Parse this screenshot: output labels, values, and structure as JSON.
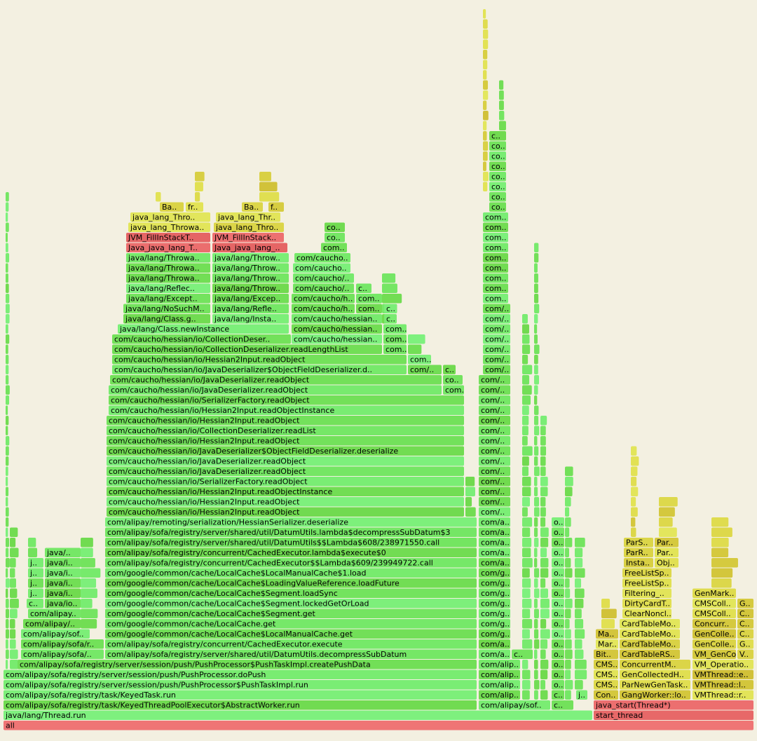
{
  "rows": [
    [
      "all"
    ],
    [
      "java/lang/Thread.run",
      "start_thread"
    ],
    [
      "com/alipay/sofa/registry/task/KeyedThreadPoolExecutor$AbstractWorker.run",
      "com/alipay/sof..",
      "c..",
      "java_start(Thread*)"
    ],
    [
      "com/alipay/sofa/registry/task/KeyedTask.run",
      "com/alip..",
      "c..",
      "j..",
      "Con..",
      "GangWorker::lo..",
      "VMThread::r.."
    ],
    [
      "com/alipay/sofa/registry/server/session/push/PushProcessor$PushTaskImpl.run",
      "com/alip..",
      "o..",
      "CMS..",
      "ParNewGenTask..",
      "VMThread::l.."
    ],
    [
      "com/alipay/sofa/registry/server/session/push/PushProcessor.doPush",
      "com/alip..",
      "o..",
      "CMS..",
      "GenCollectedH..",
      "VMThread::e.."
    ],
    [
      "com/alipay/sofa/registry/server/session/push/PushProcessor$PushTaskImpl.createPushData",
      "com/alip..",
      "o..",
      "CMS..",
      "ConcurrentM..",
      "VM_Operatio.."
    ],
    [
      "com/alipay/sofa/..",
      "com/alipay/sofa/registry/server/shared/util/DatumUtils.decompressSubDatum",
      "com/a..",
      "c..",
      "o..",
      "Bit..",
      "CardTableRS..",
      "VM_GenCo..",
      "V.."
    ],
    [
      "com/alipay/sofa/r..",
      "com/alipay/sofa/registry/concurrent/CachedExecutor.execute",
      "com/a..",
      "o..",
      "Mar..",
      "CardTableMo..",
      "GenColle..",
      "G.."
    ],
    [
      "com/alipay/sof..",
      "com/google/common/cache/LocalCache$LocalManualCache.get",
      "com/g..",
      "o..",
      "Ma..",
      "CardTableMo..",
      "GenColle..",
      "C.."
    ],
    [
      "com/alipay/..",
      "com/google/common/cache/LocalCache.get",
      "com/g..",
      "o..",
      "CardTableMo..",
      "Concurr..",
      "C.."
    ],
    [
      "com/alipay..",
      "com/google/common/cache/LocalCache$Segment.get",
      "com/g..",
      "o..",
      "ClearNoncl..",
      "CMSColl..",
      "C.."
    ],
    [
      "c..",
      "java/io..",
      "com/google/common/cache/LocalCache$Segment.lockedGetOrLoad",
      "com/g..",
      "o..",
      "DirtyCardT..",
      "CMSColl..",
      "G.."
    ],
    [
      "j..",
      "java/i..",
      "com/google/common/cache/LocalCache$Segment.loadSync",
      "com/g..",
      "o..",
      "Filtering_..",
      "GenMark.."
    ],
    [
      "j..",
      "java/i..",
      "com/google/common/cache/LocalCache$LoadingValueReference.loadFuture",
      "com/g..",
      "o..",
      "FreeListSp.."
    ],
    [
      "j..",
      "java/i..",
      "com/google/common/cache/LocalCache$LocalManualCache$1.load",
      "com/g..",
      "o..",
      "FreeListSp.."
    ],
    [
      "j..",
      "java/i..",
      "com/alipay/sofa/registry/concurrent/CachedExecutor$$Lambda$609/239949722.call",
      "com/a..",
      "o..",
      "Insta..",
      "Obj.."
    ],
    [
      "java/..",
      "com/alipay/sofa/registry/concurrent/CachedExecutor.lambda$execute$0",
      "com/a..",
      "o..",
      "ParR..",
      "Par.."
    ],
    [
      "com/alipay/sofa/registry/server/shared/util/DatumUtils$$Lambda$608/238971550.call",
      "com/a..",
      "o..",
      "ParS..",
      "Par.."
    ],
    [
      "com/alipay/sofa/registry/server/shared/util/DatumUtils.lambda$decompressSubDatum$3",
      "com/a..",
      "o.."
    ],
    [
      "com/alipay/remoting/serialization/HessianSerializer.deserialize",
      "com/a..",
      "o.."
    ],
    [
      "com/caucho/hessian/io/Hessian2Input.readObject",
      "com/.."
    ],
    [
      "com/caucho/hessian/io/Hessian2Input.readObject",
      "com/.."
    ],
    [
      "com/caucho/hessian/io/Hessian2Input.readObjectInstance",
      "com/.."
    ],
    [
      "com/caucho/hessian/io/SerializerFactory.readObject",
      "com/.."
    ],
    [
      "com/caucho/hessian/io/JavaDeserializer.readObject",
      "com/.."
    ],
    [
      "com/caucho/hessian/io/JavaDeserializer.readObject",
      "com/.."
    ],
    [
      "com/caucho/hessian/io/JavaDeserializer$ObjectFieldDeserializer.deserialize",
      "com/.."
    ],
    [
      "com/caucho/hessian/io/Hessian2Input.readObject",
      "com/.."
    ],
    [
      "com/caucho/hessian/io/CollectionDeserializer.readList",
      "com/.."
    ],
    [
      "com/caucho/hessian/io/Hessian2Input.readObject",
      "com/.."
    ],
    [
      "com/caucho/hessian/io/Hessian2Input.readObjectInstance",
      "com/.."
    ],
    [
      "com/caucho/hessian/io/SerializerFactory.readObject",
      "com/.."
    ],
    [
      "com/caucho/hessian/io/JavaDeserializer.readObject",
      "com..",
      "com/.."
    ],
    [
      "com/caucho/hessian/io/JavaDeserializer.readObject",
      "co..",
      "com/.."
    ],
    [
      "com/caucho/hessian/io/JavaDeserializer$ObjectFieldDeserializer.d..",
      "com/..",
      "c..",
      "com/.."
    ],
    [
      "com/caucho/hessian/io/Hessian2Input.readObject",
      "com..",
      "com/.."
    ],
    [
      "com/caucho/hessian/io/CollectionDeserializer.readLengthList",
      "com..",
      "com/.."
    ],
    [
      "com/caucho/hessian/io/CollectionDeser..",
      "com/caucho/hessian..",
      "com..",
      "com/.."
    ],
    [
      "java/lang/Class.newInstance",
      "com/caucho/hessian..",
      "com..",
      "com/.."
    ],
    [
      "java/lang/Class.g..",
      "java/lang/Insta..",
      "com/caucho/hessian..",
      "c..",
      "com/.."
    ],
    [
      "java/lang/NoSuchM..",
      "java/lang/Refle..",
      "com/caucho/h..",
      "com..",
      "c..",
      "com/.."
    ],
    [
      "java/lang/Except..",
      "java/lang/Excep..",
      "com/caucho/h..",
      "com..",
      "com.."
    ],
    [
      "java/lang/Reflec..",
      "java/lang/Throw..",
      "com/caucho/..",
      "c..",
      "com.."
    ],
    [
      "java/lang/Throwa..",
      "java/lang/Throw..",
      "com/caucho/..",
      "com.."
    ],
    [
      "java/lang/Throwa..",
      "java/lang/Throw..",
      "com/caucho..",
      "com.."
    ],
    [
      "java/lang/Throwa..",
      "java/lang/Throw..",
      "com/caucho..",
      "com.."
    ],
    [
      "Java_java_lang_T..",
      "Java_java_lang_..",
      "com..",
      "com.."
    ],
    [
      "JVM_FillInStackT..",
      "JVM_FillInStack..",
      "co..",
      "com.."
    ],
    [
      "java_lang_Throwa..",
      "java_lang_Thro..",
      "co..",
      "com.."
    ],
    [
      "java_lang_Thro..",
      "java_lang_Thr..",
      "com.."
    ],
    [
      "Ba..",
      "fr..",
      "Ba..",
      "f..",
      "co.."
    ],
    [
      "co.."
    ],
    [
      "co.."
    ],
    [
      "co.."
    ],
    [
      "co.."
    ],
    [
      "co.."
    ],
    [
      "co.."
    ],
    [
      "c.."
    ]
  ]
}
